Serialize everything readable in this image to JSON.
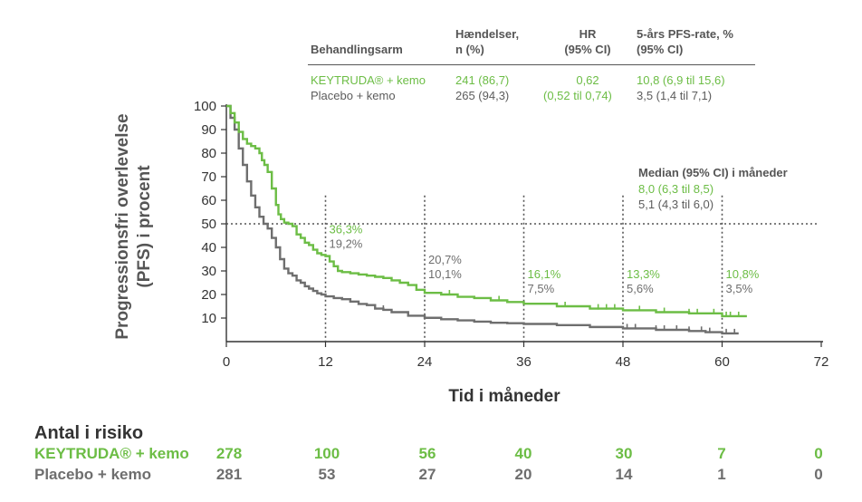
{
  "table": {
    "headers": [
      "Behandlingsarm",
      "Hændelser,\nn (%)",
      "HR\n(95% CI)",
      "5-års PFS-rate, %\n(95% CI)"
    ],
    "rows": [
      {
        "arm": "KEYTRUDA® + kemo",
        "events": "241 (86,7)",
        "hr": "0,62",
        "rate": "10,8 (6,9 til 15,6)"
      },
      {
        "arm": "Placebo + kemo",
        "events": "265 (94,3)",
        "hr": "(0,52 til 0,74)",
        "rate": "3,5 (1,4 til 7,1)"
      }
    ]
  },
  "median": {
    "title": "Median (95% CI) i måneder",
    "keytruda": "8,0 (6,3 til 8,5)",
    "placebo": "5,1 (4,3 til 6,0)"
  },
  "risk": {
    "title": "Antal i risiko",
    "keytruda_label": "KEYTRUDA® + kemo",
    "placebo_label": "Placebo + kemo",
    "keytruda_counts": [
      "278",
      "100",
      "56",
      "40",
      "30",
      "7",
      "0"
    ],
    "placebo_counts": [
      "281",
      "53",
      "27",
      "20",
      "14",
      "1",
      "0"
    ]
  },
  "colors": {
    "keytruda": "#6cbd45",
    "placebo": "#6e6e6e"
  },
  "chart_data": {
    "type": "line",
    "xlabel": "Tid i måneder",
    "ylabel": "Progressionsfri overlevelse\n(PFS) i procent",
    "xlim": [
      0,
      72
    ],
    "ylim": [
      0,
      100
    ],
    "xticks": [
      0,
      12,
      24,
      36,
      48,
      60,
      72
    ],
    "yticks": [
      10,
      20,
      30,
      40,
      50,
      60,
      70,
      80,
      90,
      100
    ],
    "reference_line_y": 50,
    "series": [
      {
        "name": "KEYTRUDA® + kemo",
        "color": "#6cbd45",
        "x": [
          0,
          0.5,
          1,
          1.5,
          2,
          2.5,
          3,
          3.5,
          4,
          4.3,
          4.6,
          5,
          5.5,
          6,
          6.3,
          6.6,
          7,
          7.5,
          8,
          8.5,
          9,
          9.5,
          10,
          10.5,
          11,
          11.5,
          12,
          12.5,
          13,
          13.5,
          14,
          15,
          16,
          17,
          18,
          19,
          20,
          21,
          22,
          23,
          24,
          26,
          28,
          30,
          32,
          34,
          36,
          40,
          44,
          48,
          52,
          56,
          60,
          63
        ],
        "y": [
          100,
          97,
          93,
          89,
          86,
          84,
          83,
          82,
          80,
          77,
          75,
          72,
          65,
          58,
          54,
          52,
          50.5,
          50,
          49,
          45.5,
          44,
          42,
          41,
          39,
          37.5,
          36.8,
          36.3,
          34,
          32,
          30,
          29.5,
          29,
          28.5,
          28,
          27.5,
          27,
          26,
          25,
          24,
          22,
          20.7,
          20,
          19,
          18.5,
          17.5,
          16.8,
          16.1,
          15,
          14,
          13.3,
          12.5,
          12,
          10.8,
          10.8
        ]
      },
      {
        "name": "Placebo + kemo",
        "color": "#6e6e6e",
        "x": [
          0,
          0.5,
          1,
          1.5,
          2,
          2.5,
          3,
          3.5,
          4,
          4.5,
          5,
          5.5,
          6,
          6.5,
          7,
          7.5,
          8,
          8.5,
          9,
          9.5,
          10,
          10.5,
          11,
          11.5,
          12,
          13,
          14,
          15,
          16,
          17,
          18,
          19,
          20,
          22,
          24,
          26,
          28,
          30,
          32,
          34,
          36,
          40,
          44,
          48,
          52,
          56,
          58,
          60,
          62
        ],
        "y": [
          100,
          95,
          90,
          82,
          75,
          68,
          62,
          57,
          53,
          50,
          48,
          44,
          40,
          35,
          31,
          29,
          28,
          26,
          25,
          23.5,
          22.5,
          21.5,
          20.5,
          20,
          19.2,
          18.5,
          18,
          17,
          16,
          15.5,
          14,
          13.5,
          12.5,
          11,
          10.1,
          9.5,
          9,
          8.5,
          8,
          7.8,
          7.5,
          7,
          6.2,
          5.6,
          5,
          4.5,
          4,
          3.5,
          3.5
        ]
      }
    ],
    "annotations": [
      {
        "x": 12,
        "keytruda": "36,3%",
        "placebo": "19,2%"
      },
      {
        "x": 24,
        "keytruda": "20,7%",
        "placebo": "10,1%"
      },
      {
        "x": 36,
        "keytruda": "16,1%",
        "placebo": "7,5%"
      },
      {
        "x": 48,
        "keytruda": "13,3%",
        "placebo": "5,6%"
      },
      {
        "x": 60,
        "keytruda": "10,8%",
        "placebo": "3,5%"
      }
    ],
    "censor_marks": {
      "keytruda_x": [
        27,
        33,
        41,
        45,
        46,
        47,
        50,
        53,
        56,
        57,
        59,
        60.5,
        61,
        62
      ],
      "placebo_x": [
        19,
        48.5,
        49.5,
        52,
        53,
        54.5,
        56,
        57.5,
        58.5,
        60.5,
        61.5
      ]
    }
  }
}
